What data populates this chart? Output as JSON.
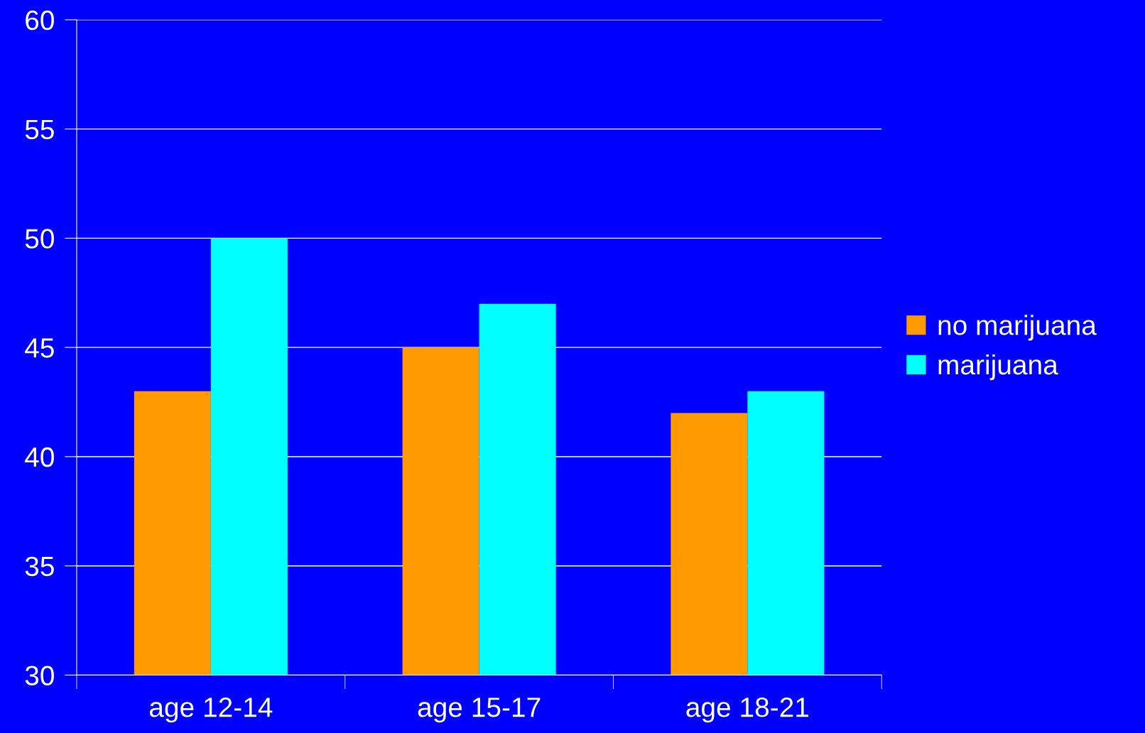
{
  "chart_data": {
    "type": "bar",
    "categories": [
      "age 12-14",
      "age 15-17",
      "age 18-21"
    ],
    "series": [
      {
        "name": "no marijuana",
        "color": "#ff9900",
        "values": [
          43,
          45,
          42
        ]
      },
      {
        "name": "marijuana",
        "color": "#00ffff",
        "values": [
          50,
          47,
          43
        ]
      }
    ],
    "ylim": [
      30,
      60
    ],
    "yticks": [
      30,
      35,
      40,
      45,
      50,
      55,
      60
    ],
    "grid": "y",
    "legend": "right"
  }
}
